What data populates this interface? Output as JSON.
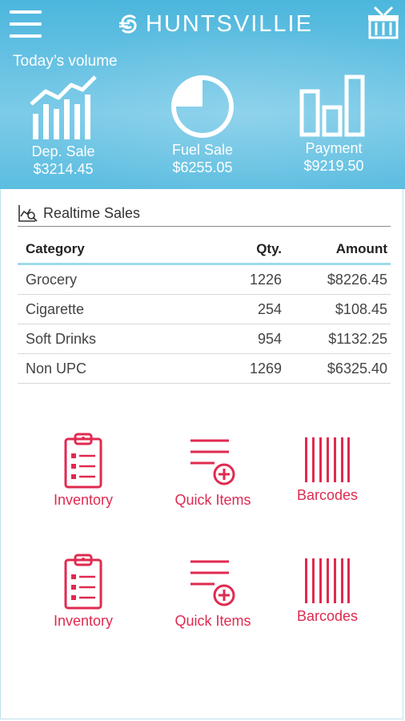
{
  "header": {
    "brand": "HUNTSVILLIE",
    "volume_label": "Today’s volume",
    "stats": [
      {
        "name": "Dep. Sale",
        "value": "$3214.45",
        "icon": "line-chart-icon"
      },
      {
        "name": "Fuel Sale",
        "value": "$6255.05",
        "icon": "pie-chart-icon"
      },
      {
        "name": "Payment",
        "value": "$9219.50",
        "icon": "bar-chart-icon"
      }
    ]
  },
  "realtime": {
    "title": "Realtime Sales",
    "columns": [
      "Category",
      "Qty.",
      "Amount"
    ],
    "rows": [
      {
        "category": "Grocery",
        "qty": "1226",
        "amount": "$8226.45"
      },
      {
        "category": "Cigarette",
        "qty": "254",
        "amount": "$108.45"
      },
      {
        "category": "Soft Drinks",
        "qty": "954",
        "amount": "$1132.25"
      },
      {
        "category": "Non UPC",
        "qty": "1269",
        "amount": "$6325.40"
      }
    ]
  },
  "tiles": [
    {
      "label": "Inventory",
      "icon": "clipboard-icon"
    },
    {
      "label": "Quick Items",
      "icon": "add-list-icon"
    },
    {
      "label": "Barcodes",
      "icon": "barcode-icon"
    },
    {
      "label": "Inventory",
      "icon": "clipboard-icon"
    },
    {
      "label": "Quick Items",
      "icon": "add-list-icon"
    },
    {
      "label": "Barcodes",
      "icon": "barcode-icon"
    }
  ],
  "colors": {
    "header_blue": "#5cbde0",
    "accent_red": "#e02a50",
    "table_rule": "#9ed9ec"
  }
}
